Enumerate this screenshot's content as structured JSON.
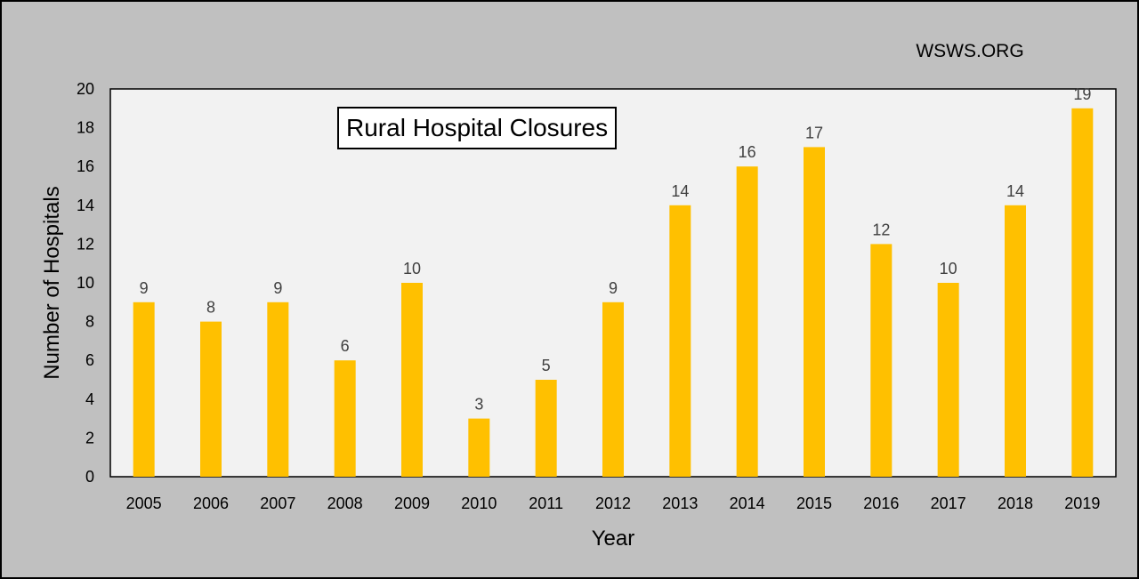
{
  "watermark": "WSWS.ORG",
  "chart_data": {
    "type": "bar",
    "title": "Rural Hospital Closures",
    "xlabel": "Year",
    "ylabel": "Number of Hospitals",
    "categories": [
      "2005",
      "2006",
      "2007",
      "2008",
      "2009",
      "2010",
      "2011",
      "2012",
      "2013",
      "2014",
      "2015",
      "2016",
      "2017",
      "2018",
      "2019"
    ],
    "values": [
      9,
      8,
      9,
      6,
      10,
      3,
      5,
      9,
      14,
      16,
      17,
      12,
      10,
      14,
      19
    ],
    "ylim": [
      0,
      20
    ],
    "yticks": [
      0,
      2,
      4,
      6,
      8,
      10,
      12,
      14,
      16,
      18,
      20
    ],
    "grid": false,
    "data_labels": true,
    "bar_color": "#FFC000",
    "plot_background": "#F2F2F2",
    "background": "#C0C0C0"
  }
}
